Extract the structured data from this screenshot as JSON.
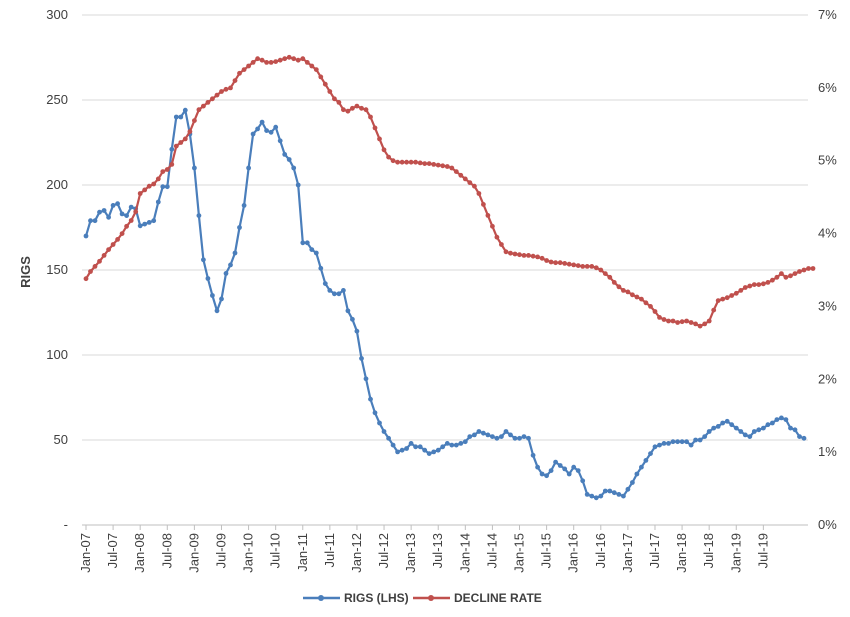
{
  "chart_data": {
    "type": "line",
    "title": "",
    "ylabel": "RIGS",
    "y2label": "",
    "ylim": [
      0,
      300
    ],
    "y2lim": [
      0,
      7
    ],
    "yticks": [
      "-",
      "50",
      "100",
      "150",
      "200",
      "250",
      "300"
    ],
    "y2ticks": [
      "0%",
      "1%",
      "2%",
      "3%",
      "4%",
      "5%",
      "6%",
      "7%"
    ],
    "xticks": [
      "Jan-07",
      "Jul-07",
      "Jan-08",
      "Jul-08",
      "Jan-09",
      "Jul-09",
      "Jan-10",
      "Jul-10",
      "Jan-11",
      "Jul-11",
      "Jan-12",
      "Jul-12",
      "Jan-13",
      "Jul-13",
      "Jan-14",
      "Jul-14",
      "Jan-15",
      "Jul-15",
      "Jan-16",
      "Jul-16",
      "Jan-17",
      "Jul-17",
      "Jan-18",
      "Jul-18",
      "Jan-19",
      "Jul-19"
    ],
    "grid": true,
    "legend_position": "bottom",
    "series": [
      {
        "name": "RIGS (LHS)",
        "axis": "left",
        "color": "#4a7ebb",
        "values": [
          170,
          179,
          179,
          184,
          185,
          181,
          188,
          189,
          183,
          182,
          187,
          186,
          176,
          177,
          178,
          179,
          190,
          199,
          199,
          221,
          240,
          240,
          244,
          230,
          210,
          182,
          156,
          145,
          135,
          126,
          133,
          148,
          153,
          160,
          175,
          188,
          210,
          230,
          233,
          237,
          232,
          231,
          234,
          226,
          218,
          215,
          210,
          200,
          166,
          166,
          162,
          160,
          151,
          142,
          138,
          136,
          136,
          138,
          126,
          121,
          114,
          98,
          86,
          74,
          66,
          60,
          55,
          51,
          47,
          43,
          44,
          45,
          48,
          46,
          46,
          44,
          42,
          43,
          44,
          46,
          48,
          47,
          47,
          48,
          49,
          52,
          53,
          55,
          54,
          53,
          52,
          51,
          52,
          55,
          53,
          51,
          51,
          52,
          51,
          41,
          34,
          30,
          29,
          32,
          37,
          35,
          33,
          30,
          34,
          32,
          26,
          18,
          17,
          16,
          17,
          20,
          20,
          19,
          18,
          17,
          21,
          25,
          30,
          34,
          38,
          42,
          46,
          47,
          48,
          48,
          49,
          49,
          49,
          49,
          47,
          50,
          50,
          52,
          55,
          57,
          58,
          60,
          61,
          59,
          57,
          55,
          53,
          52,
          55,
          56,
          57,
          59,
          60,
          62,
          63,
          62,
          57,
          56,
          52,
          51
        ]
      },
      {
        "name": "DECLINE RATE",
        "axis": "right",
        "color": "#c0504d",
        "values": [
          3.38,
          3.48,
          3.55,
          3.62,
          3.7,
          3.78,
          3.85,
          3.92,
          4.0,
          4.1,
          4.18,
          4.3,
          4.55,
          4.6,
          4.65,
          4.68,
          4.75,
          4.85,
          4.88,
          4.95,
          5.2,
          5.25,
          5.3,
          5.4,
          5.55,
          5.7,
          5.75,
          5.8,
          5.85,
          5.9,
          5.95,
          5.98,
          6.0,
          6.1,
          6.2,
          6.25,
          6.3,
          6.35,
          6.4,
          6.38,
          6.35,
          6.35,
          6.36,
          6.38,
          6.4,
          6.42,
          6.4,
          6.38,
          6.4,
          6.35,
          6.3,
          6.25,
          6.15,
          6.05,
          5.95,
          5.85,
          5.8,
          5.7,
          5.68,
          5.72,
          5.75,
          5.72,
          5.7,
          5.6,
          5.45,
          5.3,
          5.15,
          5.05,
          5.0,
          4.98,
          4.98,
          4.98,
          4.98,
          4.98,
          4.97,
          4.96,
          4.96,
          4.95,
          4.94,
          4.93,
          4.92,
          4.9,
          4.85,
          4.8,
          4.75,
          4.7,
          4.65,
          4.55,
          4.4,
          4.25,
          4.1,
          3.95,
          3.85,
          3.75,
          3.73,
          3.72,
          3.71,
          3.7,
          3.7,
          3.69,
          3.68,
          3.66,
          3.63,
          3.61,
          3.6,
          3.6,
          3.59,
          3.58,
          3.57,
          3.56,
          3.55,
          3.55,
          3.55,
          3.53,
          3.5,
          3.45,
          3.4,
          3.33,
          3.27,
          3.22,
          3.2,
          3.16,
          3.13,
          3.1,
          3.05,
          3.0,
          2.93,
          2.85,
          2.82,
          2.8,
          2.8,
          2.78,
          2.79,
          2.8,
          2.78,
          2.76,
          2.73,
          2.76,
          2.8,
          2.95,
          3.08,
          3.1,
          3.12,
          3.15,
          3.18,
          3.22,
          3.26,
          3.28,
          3.3,
          3.3,
          3.31,
          3.33,
          3.36,
          3.4,
          3.45,
          3.4,
          3.42,
          3.45,
          3.48,
          3.5,
          3.52,
          3.52
        ]
      }
    ]
  }
}
